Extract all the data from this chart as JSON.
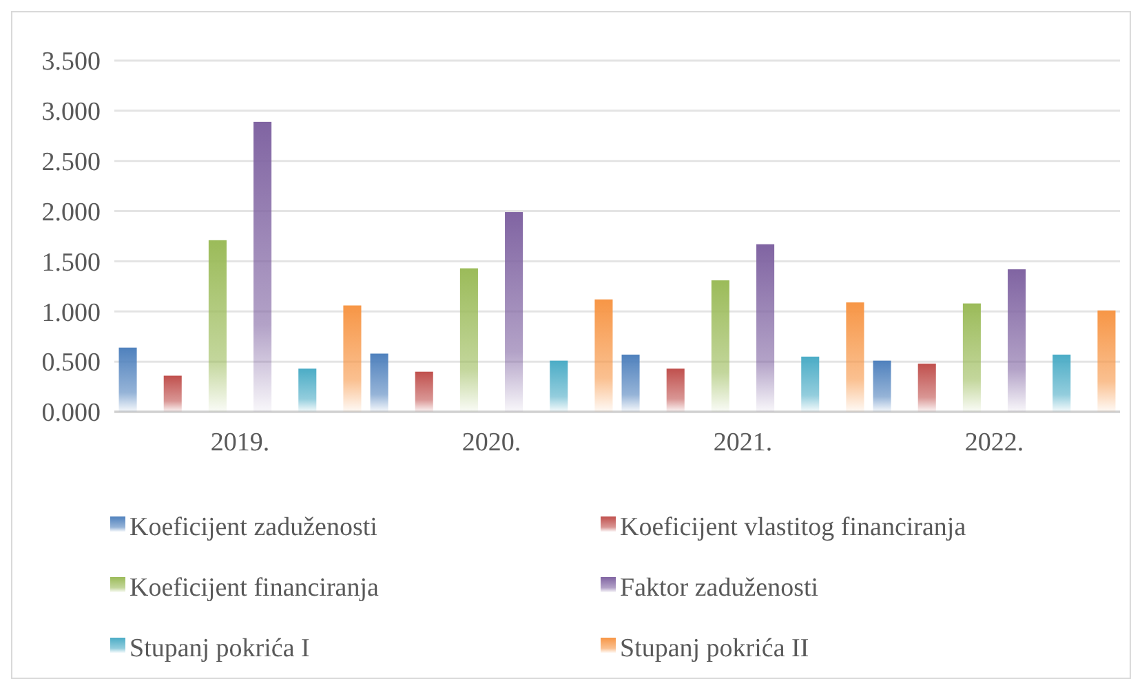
{
  "chart_data": {
    "type": "bar",
    "categories": [
      "2019.",
      "2020.",
      "2021.",
      "2022."
    ],
    "series": [
      {
        "name": "Koeficijent zaduženosti",
        "color": "#4f81bd",
        "values": [
          0.64,
          0.58,
          0.57,
          0.51
        ]
      },
      {
        "name": "Koeficijent vlastitog financiranja",
        "color": "#c0504d",
        "values": [
          0.36,
          0.4,
          0.43,
          0.48
        ]
      },
      {
        "name": "Koeficijent financiranja",
        "color": "#9bbb59",
        "values": [
          1.71,
          1.43,
          1.31,
          1.08
        ]
      },
      {
        "name": "Faktor zaduženosti",
        "color": "#8064a2",
        "values": [
          2.89,
          1.99,
          1.67,
          1.42
        ]
      },
      {
        "name": "Stupanj pokrića I",
        "color": "#4bacc6",
        "values": [
          0.43,
          0.51,
          0.55,
          0.57
        ]
      },
      {
        "name": "Stupanj pokrića II",
        "color": "#f79646",
        "values": [
          1.06,
          1.12,
          1.09,
          1.01
        ]
      }
    ],
    "ylim": [
      0,
      3.5
    ],
    "yticks": [
      {
        "value": 0,
        "label": "0.000"
      },
      {
        "value": 0.5,
        "label": "0.500"
      },
      {
        "value": 1,
        "label": "1.000"
      },
      {
        "value": 1.5,
        "label": "1.500"
      },
      {
        "value": 2,
        "label": "2.000"
      },
      {
        "value": 2.5,
        "label": "2.500"
      },
      {
        "value": 3,
        "label": "3.000"
      },
      {
        "value": 3.5,
        "label": "3.500"
      }
    ],
    "grid": "y",
    "legend": "bottom"
  }
}
